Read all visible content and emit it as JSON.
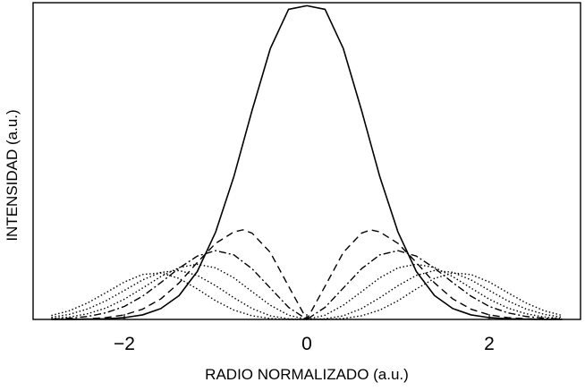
{
  "chart_data": {
    "type": "line",
    "title": "",
    "xlabel": "RADIO NORMALIZADO (a.u.)",
    "ylabel": "INTENSIDAD  (a.u.)",
    "xlim": [
      -3.0,
      3.0
    ],
    "ylim": [
      0,
      1.05
    ],
    "xticks": [
      -2,
      0,
      2
    ],
    "xtick_labels": [
      "−2",
      "0",
      "2"
    ],
    "grid": false,
    "legend": "none",
    "series": [
      {
        "style": "solid",
        "color": "#000000",
        "x": [
          -2.8,
          -2.6,
          -2.4,
          -2.2,
          -2.0,
          -1.8,
          -1.6,
          -1.4,
          -1.2,
          -1.0,
          -0.8,
          -0.6,
          -0.4,
          -0.2,
          0.0,
          0.2,
          0.4,
          0.6,
          0.8,
          1.0,
          1.2,
          1.4,
          1.6,
          1.8,
          2.0,
          2.2,
          2.4,
          2.6,
          2.8
        ],
        "y": [
          0.0,
          0.0,
          0.001,
          0.002,
          0.006,
          0.015,
          0.036,
          0.079,
          0.159,
          0.289,
          0.473,
          0.693,
          0.898,
          1.028,
          1.04,
          1.028,
          0.898,
          0.693,
          0.473,
          0.289,
          0.159,
          0.079,
          0.036,
          0.015,
          0.006,
          0.002,
          0.001,
          0.0,
          0.0
        ]
      },
      {
        "style": "dashed",
        "color": "#000000",
        "x": [
          -2.6,
          -2.4,
          -2.2,
          -2.0,
          -1.8,
          -1.6,
          -1.4,
          -1.2,
          -1.0,
          -0.8,
          -0.7,
          -0.6,
          -0.4,
          -0.2,
          0.0,
          0.2,
          0.4,
          0.6,
          0.7,
          0.8,
          1.0,
          1.2,
          1.4,
          1.6,
          1.8,
          2.0,
          2.2,
          2.4,
          2.6
        ],
        "y": [
          0.001,
          0.002,
          0.006,
          0.015,
          0.034,
          0.068,
          0.121,
          0.189,
          0.252,
          0.29,
          0.297,
          0.286,
          0.222,
          0.11,
          0.0,
          0.11,
          0.222,
          0.286,
          0.297,
          0.29,
          0.252,
          0.189,
          0.121,
          0.068,
          0.034,
          0.015,
          0.006,
          0.002,
          0.001
        ]
      },
      {
        "style": "dashdot",
        "color": "#000000",
        "x": [
          -2.8,
          -2.6,
          -2.4,
          -2.2,
          -2.0,
          -1.8,
          -1.6,
          -1.4,
          -1.2,
          -1.0,
          -0.8,
          -0.6,
          -0.4,
          -0.2,
          0.0,
          0.2,
          0.4,
          0.6,
          0.8,
          1.0,
          1.2,
          1.4,
          1.6,
          1.8,
          2.0,
          2.2,
          2.4,
          2.6,
          2.8
        ],
        "y": [
          0.001,
          0.004,
          0.01,
          0.022,
          0.043,
          0.077,
          0.122,
          0.17,
          0.21,
          0.228,
          0.214,
          0.168,
          0.104,
          0.04,
          0.0,
          0.04,
          0.104,
          0.168,
          0.214,
          0.228,
          0.21,
          0.17,
          0.122,
          0.077,
          0.043,
          0.022,
          0.01,
          0.004,
          0.001
        ]
      },
      {
        "style": "dotted",
        "color": "#000000",
        "x": [
          -2.8,
          -2.6,
          -2.4,
          -2.2,
          -2.0,
          -1.8,
          -1.6,
          -1.4,
          -1.2,
          -1.0,
          -0.8,
          -0.6,
          -0.4,
          -0.2,
          0.0,
          0.2,
          0.4,
          0.6,
          0.8,
          1.0,
          1.2,
          1.4,
          1.6,
          1.8,
          2.0,
          2.2,
          2.4,
          2.6,
          2.8
        ],
        "y": [
          0.003,
          0.008,
          0.019,
          0.038,
          0.067,
          0.104,
          0.142,
          0.172,
          0.183,
          0.171,
          0.138,
          0.092,
          0.047,
          0.014,
          0.0,
          0.014,
          0.047,
          0.092,
          0.138,
          0.171,
          0.183,
          0.172,
          0.142,
          0.104,
          0.067,
          0.038,
          0.019,
          0.008,
          0.003
        ]
      },
      {
        "style": "dotted",
        "color": "#000000",
        "x": [
          -2.8,
          -2.6,
          -2.4,
          -2.2,
          -2.0,
          -1.8,
          -1.6,
          -1.4,
          -1.2,
          -1.0,
          -0.8,
          -0.6,
          -0.4,
          -0.2,
          0.0,
          0.2,
          0.4,
          0.6,
          0.8,
          1.0,
          1.2,
          1.4,
          1.6,
          1.8,
          2.0,
          2.2,
          2.4,
          2.6,
          2.8
        ],
        "y": [
          0.007,
          0.017,
          0.035,
          0.062,
          0.096,
          0.131,
          0.156,
          0.162,
          0.146,
          0.112,
          0.072,
          0.036,
          0.012,
          0.002,
          0.0,
          0.002,
          0.012,
          0.036,
          0.072,
          0.112,
          0.146,
          0.162,
          0.156,
          0.131,
          0.096,
          0.062,
          0.035,
          0.017,
          0.007
        ]
      },
      {
        "style": "dotted",
        "color": "#000000",
        "x": [
          -2.8,
          -2.6,
          -2.4,
          -2.2,
          -2.0,
          -1.8,
          -1.6,
          -1.4,
          -1.2,
          -1.0,
          -0.8,
          -0.6,
          -0.4,
          -0.2,
          0.0,
          0.2,
          0.4,
          0.6,
          0.8,
          1.0,
          1.2,
          1.4,
          1.6,
          1.8,
          2.0,
          2.2,
          2.4,
          2.6,
          2.8
        ],
        "y": [
          0.013,
          0.029,
          0.055,
          0.089,
          0.124,
          0.149,
          0.154,
          0.136,
          0.101,
          0.062,
          0.031,
          0.012,
          0.003,
          0.0,
          0.0,
          0.0,
          0.003,
          0.012,
          0.031,
          0.062,
          0.101,
          0.136,
          0.154,
          0.149,
          0.124,
          0.089,
          0.055,
          0.029,
          0.013
        ]
      }
    ]
  }
}
